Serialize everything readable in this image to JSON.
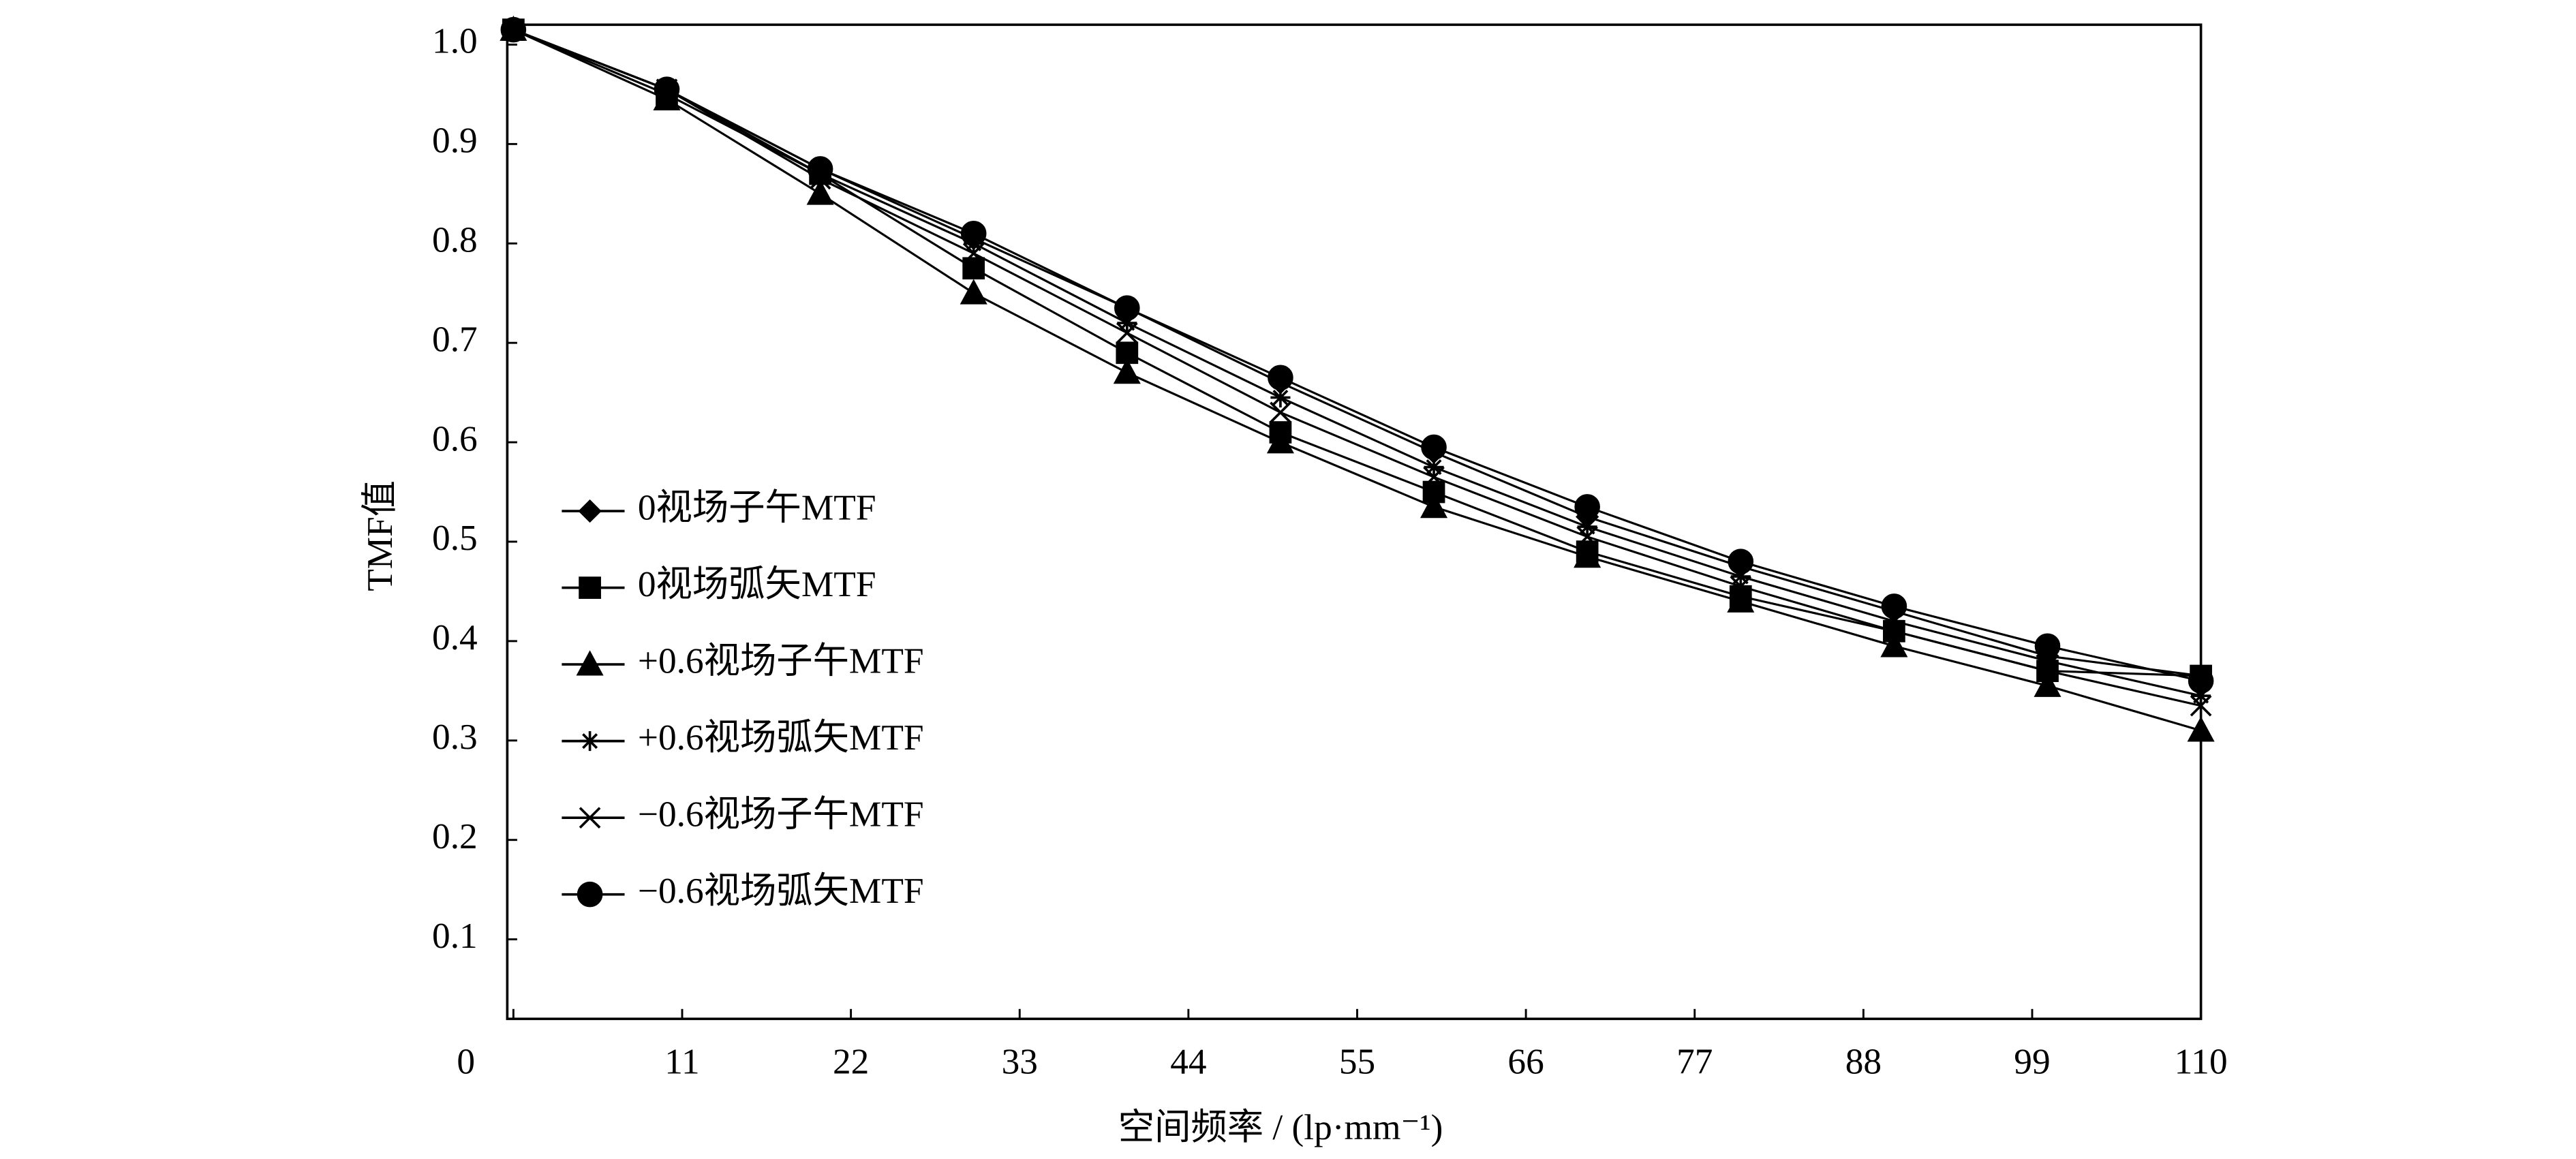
{
  "chart_data": {
    "type": "line",
    "x_label": "空间频率 / (lp·mm⁻¹)",
    "y_label": "TMF值",
    "x": [
      0,
      10,
      20,
      30,
      40,
      50,
      60,
      70,
      80,
      90,
      100,
      110
    ],
    "xlim": [
      -0.4,
      110
    ],
    "ylim": [
      0.02,
      1.02
    ],
    "xticks": [
      0,
      11,
      22,
      33,
      44,
      55,
      66,
      77,
      88,
      99,
      110
    ],
    "yticks": [
      0.1,
      0.2,
      0.3,
      0.4,
      0.5,
      0.6,
      0.7,
      0.8,
      0.9,
      {
        "value": 1,
        "label": "1.0"
      }
    ],
    "grid": false,
    "legend": "lower left",
    "series": [
      {
        "name": "0视场子午MTF",
        "color": "#000000",
        "marker": "diamond",
        "values": [
          1.015,
          0.955,
          0.875,
          0.805,
          0.735,
          0.66,
          0.59,
          0.525,
          0.475,
          0.43,
          0.385,
          0.365
        ]
      },
      {
        "name": "0视场弧矢MTF",
        "color": "#000000",
        "marker": "square",
        "values": [
          1.015,
          0.95,
          0.87,
          0.775,
          0.69,
          0.61,
          0.55,
          0.49,
          0.445,
          0.41,
          0.37,
          0.365
        ]
      },
      {
        "name": "+0.6视场子午MTF",
        "color": "#000000",
        "marker": "triangle",
        "values": [
          1.015,
          0.945,
          0.85,
          0.75,
          0.67,
          0.6,
          0.535,
          0.485,
          0.44,
          0.395,
          0.355,
          0.31
        ]
      },
      {
        "name": "+0.6视场弧矢MTF",
        "color": "#000000",
        "marker": "star",
        "values": [
          1.015,
          0.955,
          0.87,
          0.8,
          0.72,
          0.645,
          0.575,
          0.515,
          0.465,
          0.42,
          0.38,
          0.345
        ]
      },
      {
        "name": "−0.6视场子午MTF",
        "color": "#000000",
        "marker": "x",
        "values": [
          1.015,
          0.955,
          0.865,
          0.79,
          0.71,
          0.63,
          0.565,
          0.505,
          0.455,
          0.41,
          0.37,
          0.335
        ]
      },
      {
        "name": "−0.6视场弧矢MTF",
        "color": "#000000",
        "marker": "circle",
        "values": [
          1.015,
          0.955,
          0.875,
          0.81,
          0.735,
          0.665,
          0.595,
          0.535,
          0.48,
          0.435,
          0.395,
          0.36
        ]
      }
    ]
  }
}
